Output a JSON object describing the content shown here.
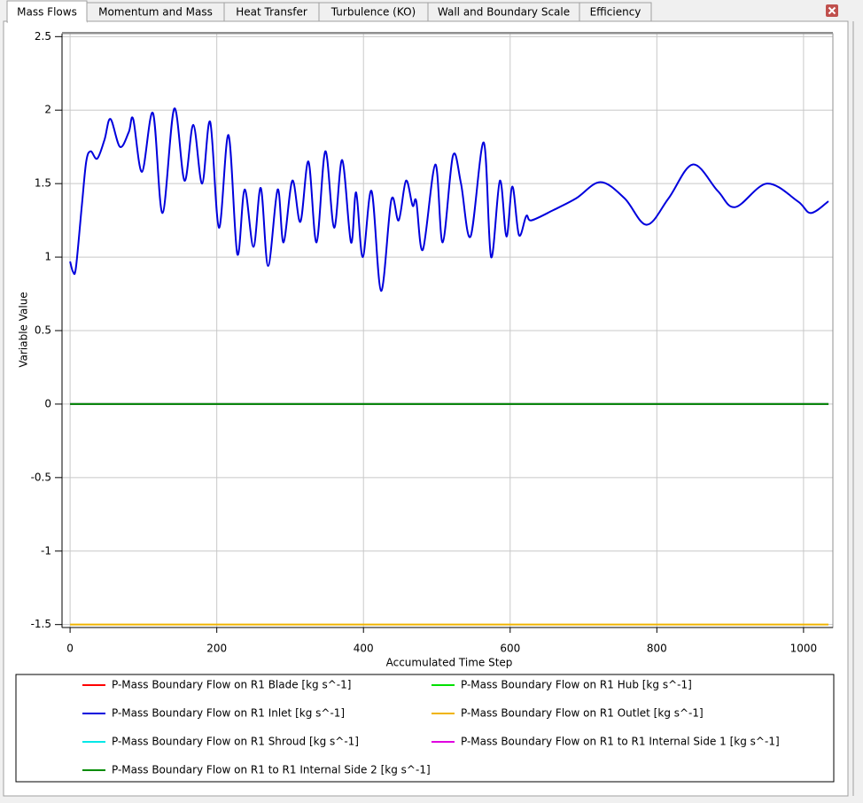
{
  "tabs": [
    "Mass Flows",
    "Momentum and Mass",
    "Heat Transfer",
    "Turbulence (KO)",
    "Wall and Boundary Scale",
    "Efficiency"
  ],
  "active_tab": "Mass Flows",
  "chart_data": {
    "type": "line",
    "xlabel": "Accumulated Time Step",
    "ylabel": "Variable Value",
    "xlim": [
      -11,
      1040
    ],
    "ylim": [
      -1.52,
      2.52
    ],
    "xticks": [
      0,
      200,
      400,
      600,
      800,
      1000
    ],
    "yticks": [
      {
        "value": 2.5,
        "label": "2.5"
      },
      2,
      1.5,
      1,
      0.5,
      0,
      -0.5,
      -1,
      {
        "value": -1.5,
        "label": "-1.5"
      }
    ],
    "grid": true,
    "x": [
      0,
      4,
      8,
      16,
      22,
      28,
      37,
      47,
      55,
      68,
      80,
      86,
      98,
      113,
      126,
      142,
      156,
      168,
      180,
      191,
      203,
      216,
      228,
      238,
      250,
      260,
      270,
      283,
      291,
      303,
      314,
      325,
      336,
      348,
      360,
      371,
      383,
      390,
      399,
      411,
      424,
      438,
      448,
      458,
      467,
      472,
      481,
      498,
      508,
      522,
      533,
      546,
      564,
      574,
      586,
      595,
      603,
      612,
      622,
      629,
      659,
      690,
      723,
      756,
      786,
      816,
      849,
      883,
      907,
      950,
      992,
      1010,
      1034
    ],
    "series": [
      {
        "name": "P-Mass Boundary Flow on R1 Blade [kg s^-1]",
        "color": "#ff0000",
        "x": [
          0,
          1034
        ],
        "values": [
          0,
          0
        ]
      },
      {
        "name": "P-Mass Boundary Flow on R1 Hub [kg s^-1]",
        "color": "#00e000",
        "x": [
          0,
          1034
        ],
        "values": [
          0,
          0
        ]
      },
      {
        "name": "P-Mass Boundary Flow on R1 Inlet [kg s^-1]",
        "color": "#0000dd",
        "values": [
          0.97,
          0.9,
          0.93,
          1.35,
          1.65,
          1.72,
          1.67,
          1.8,
          1.94,
          1.75,
          1.85,
          1.94,
          1.58,
          1.98,
          1.3,
          2.01,
          1.52,
          1.9,
          1.5,
          1.92,
          1.2,
          1.83,
          1.02,
          1.46,
          1.07,
          1.47,
          0.94,
          1.46,
          1.1,
          1.52,
          1.24,
          1.65,
          1.1,
          1.72,
          1.2,
          1.66,
          1.1,
          1.44,
          1.0,
          1.45,
          0.77,
          1.39,
          1.25,
          1.52,
          1.35,
          1.38,
          1.05,
          1.63,
          1.1,
          1.69,
          1.5,
          1.14,
          1.78,
          1.0,
          1.52,
          1.14,
          1.48,
          1.15,
          1.28,
          1.25,
          1.32,
          1.4,
          1.51,
          1.4,
          1.22,
          1.4,
          1.63,
          1.45,
          1.34,
          1.5,
          1.38,
          1.3,
          1.38
        ]
      },
      {
        "name": "P-Mass Boundary Flow on R1 Outlet [kg s^-1]",
        "color": "#f0b400",
        "x": [
          0,
          1034
        ],
        "values": [
          -1.5,
          -1.5
        ]
      },
      {
        "name": "P-Mass Boundary Flow on R1 Shroud [kg s^-1]",
        "color": "#00e8e8",
        "x": [
          0,
          1034
        ],
        "values": [
          0,
          0
        ]
      },
      {
        "name": "P-Mass Boundary Flow on R1 to R1 Internal Side 1 [kg s^-1]",
        "color": "#e000e0",
        "x": [
          0,
          1034
        ],
        "values": [
          0,
          0
        ]
      },
      {
        "name": "P-Mass Boundary Flow on R1 to R1 Internal Side 2 [kg s^-1]",
        "color": "#008c00",
        "x": [
          0,
          1034
        ],
        "values": [
          0,
          0
        ]
      }
    ]
  }
}
